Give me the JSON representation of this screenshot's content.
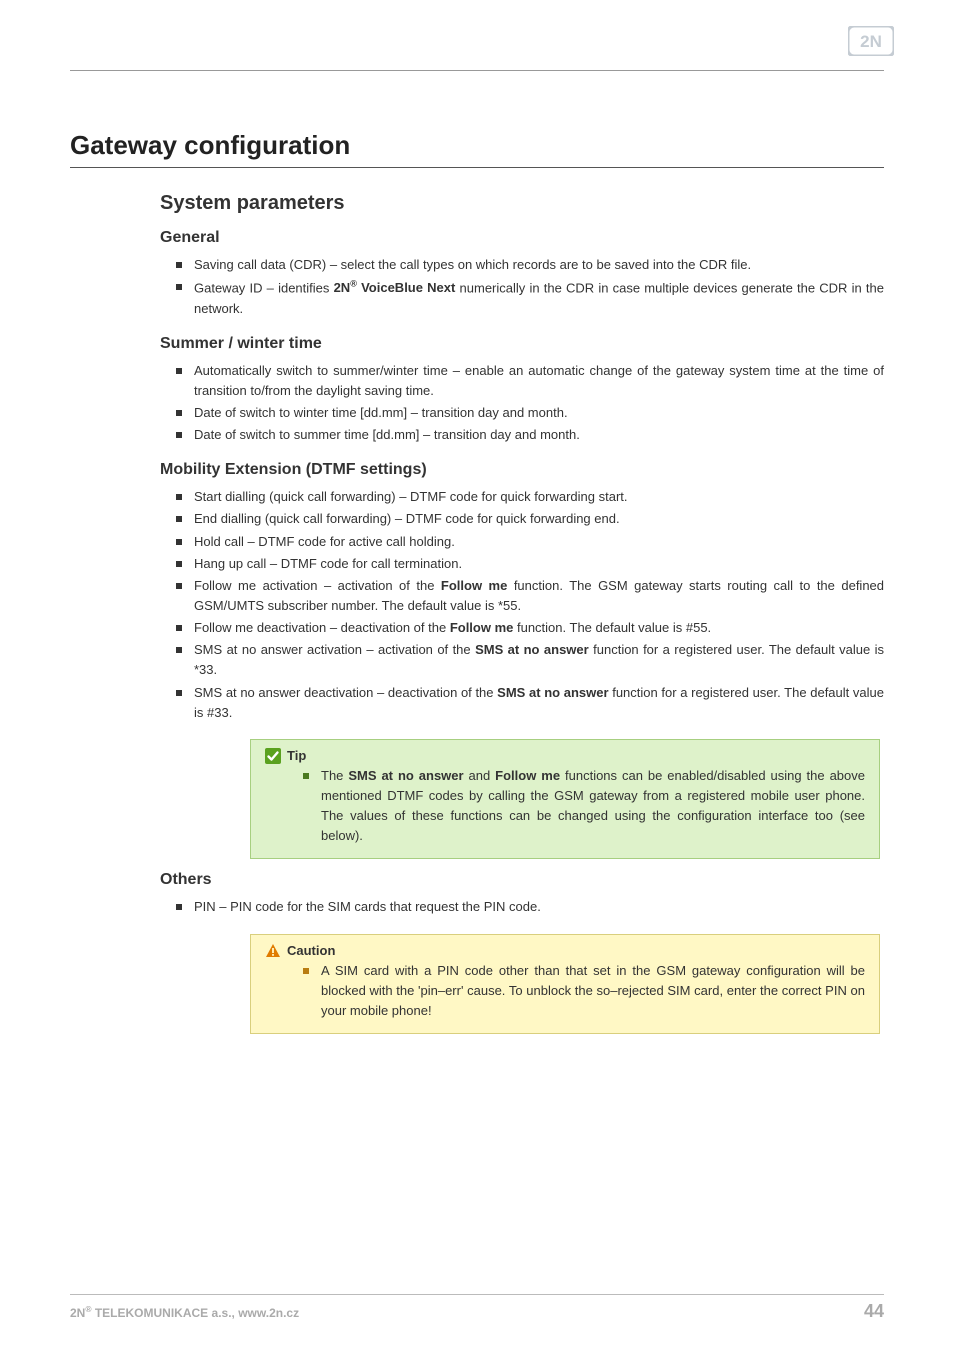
{
  "brand": {
    "logo_text": "2N",
    "logo_color": "#c5ccd3"
  },
  "title": "Gateway configuration",
  "section": "System parameters",
  "groups": [
    {
      "heading": "General",
      "items": [
        {
          "html": "Saving call data (CDR) – select the call types on which records are to be saved into the CDR file."
        },
        {
          "html": "Gateway ID – identifies <b>2N<sup>®</sup> VoiceBlue Next</b> numerically in the CDR in case multiple devices generate the CDR in the network."
        }
      ]
    },
    {
      "heading": "Summer / winter time",
      "items": [
        {
          "html": "Automatically switch to summer/winter time – enable an automatic change of the gateway system time at the time of transition to/from the daylight saving time."
        },
        {
          "html": "Date of switch to winter time [dd.mm] – transition day and month."
        },
        {
          "html": "Date of switch to summer time [dd.mm] – transition day and month."
        }
      ]
    },
    {
      "heading": "Mobility Extension (DTMF settings)",
      "items": [
        {
          "html": "Start dialling (quick call forwarding) – DTMF code for quick forwarding start."
        },
        {
          "html": "End dialling (quick call forwarding) – DTMF code for quick forwarding end."
        },
        {
          "html": "Hold call – DTMF code for active call holding."
        },
        {
          "html": "Hang up call – DTMF code for call termination."
        },
        {
          "html": "Follow me activation – activation of the <b>Follow me</b> function. The GSM gateway starts routing call to the defined GSM/UMTS subscriber number. The default value is *55."
        },
        {
          "html": "Follow me deactivation – deactivation of the <b>Follow me</b> function. The default value is #55."
        },
        {
          "html": "SMS at no answer activation – activation of the <b>SMS at no answer</b> function for a registered user. The default value is *33."
        },
        {
          "html": "SMS at no answer deactivation – deactivation of the <b>SMS at no answer</b> function for a registered user. The default value is #33."
        }
      ]
    }
  ],
  "tip": {
    "label": "Tip",
    "icon_bg": "#5aa11f",
    "text_html": "The <b>SMS at no answer</b> and <b>Follow me</b> functions can be enabled/disabled using the above mentioned DTMF codes by calling the GSM gateway from a registered mobile user phone. The values of these functions can be changed using the configuration interface too (see below)."
  },
  "others": {
    "heading": "Others",
    "items": [
      {
        "html": "PIN – PIN code for the SIM cards that request the PIN code."
      }
    ]
  },
  "caution": {
    "label": "Caution",
    "icon_color": "#e07b00",
    "text_html": "A SIM card with a PIN code other than that set in the GSM gateway configuration will be blocked with the 'pin–err' cause. To unblock the so–rejected SIM card, enter the correct PIN on your mobile phone!"
  },
  "footer": {
    "left_html": "2N<sup>®</sup> TELEKOMUNIKACE a.s., www.2n.cz",
    "page": "44"
  }
}
